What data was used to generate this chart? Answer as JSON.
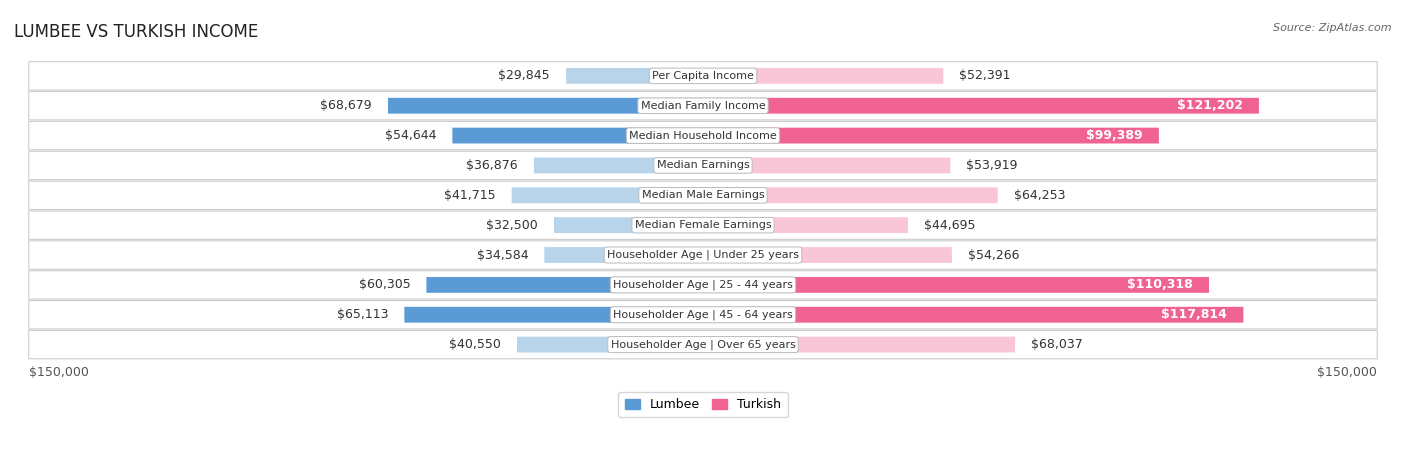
{
  "title": "LUMBEE VS TURKISH INCOME",
  "source": "Source: ZipAtlas.com",
  "categories": [
    "Per Capita Income",
    "Median Family Income",
    "Median Household Income",
    "Median Earnings",
    "Median Male Earnings",
    "Median Female Earnings",
    "Householder Age | Under 25 years",
    "Householder Age | 25 - 44 years",
    "Householder Age | 45 - 64 years",
    "Householder Age | Over 65 years"
  ],
  "lumbee_values": [
    29845,
    68679,
    54644,
    36876,
    41715,
    32500,
    34584,
    60305,
    65113,
    40550
  ],
  "turkish_values": [
    52391,
    121202,
    99389,
    53919,
    64253,
    44695,
    54266,
    110318,
    117814,
    68037
  ],
  "lumbee_labels": [
    "$29,845",
    "$68,679",
    "$54,644",
    "$36,876",
    "$41,715",
    "$32,500",
    "$34,584",
    "$60,305",
    "$65,113",
    "$40,550"
  ],
  "turkish_labels": [
    "$52,391",
    "$121,202",
    "$99,389",
    "$53,919",
    "$64,253",
    "$44,695",
    "$54,266",
    "$110,318",
    "$117,814",
    "$68,037"
  ],
  "lumbee_color_light": "#b8d4ea",
  "lumbee_color_dark": "#5b9bd5",
  "turkish_color_light": "#f9c6d7",
  "turkish_color_dark": "#f06292",
  "turkish_color_darkest": "#e91e8c",
  "max_value": 150000,
  "axis_label_left": "$150,000",
  "axis_label_right": "$150,000",
  "legend_lumbee": "Lumbee",
  "legend_turkish": "Turkish",
  "background_color": "#ffffff",
  "row_bg_color": "#f0f0f0",
  "label_fontsize": 9,
  "title_fontsize": 12,
  "category_fontsize": 8,
  "source_fontsize": 8,
  "dark_threshold_lumbee": 0.35,
  "dark_threshold_turkish": 0.6
}
